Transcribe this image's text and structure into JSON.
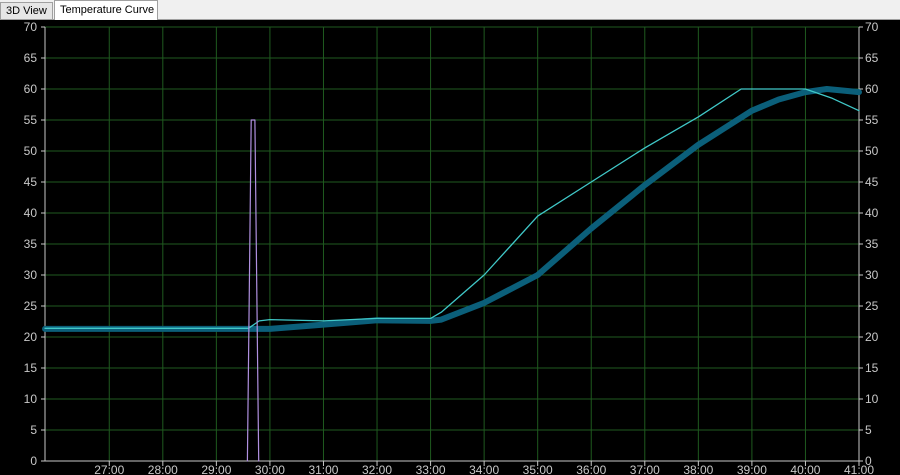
{
  "tabs": [
    {
      "label": "3D View",
      "active": false
    },
    {
      "label": "Temperature Curve",
      "active": true
    }
  ],
  "colors": {
    "background": "#000000",
    "grid": "#1f5a1f",
    "tick_text": "#c8c8c8",
    "series_thick": "#0b5f7a",
    "series_thin": "#40c8c8",
    "series_spike": "#b090e0"
  },
  "chart_data": {
    "type": "line",
    "x_axis_unit": "minutes",
    "xlim": [
      25.8,
      41.0
    ],
    "ylim": [
      0,
      70
    ],
    "grid": true,
    "x_tick_labels": [
      "27:00",
      "28:00",
      "29:00",
      "30:00",
      "31:00",
      "32:00",
      "33:00",
      "34:00",
      "35:00",
      "36:00",
      "37:00",
      "38:00",
      "39:00",
      "40:00",
      "41:00"
    ],
    "y_tick_labels": [
      "0",
      "5",
      "10",
      "15",
      "20",
      "25",
      "30",
      "35",
      "40",
      "45",
      "50",
      "55",
      "60",
      "65",
      "70"
    ],
    "series": [
      {
        "style": "thick",
        "points": [
          [
            25.8,
            21.3
          ],
          [
            29.6,
            21.3
          ],
          [
            30.0,
            21.3
          ],
          [
            31.0,
            22.0
          ],
          [
            32.0,
            22.7
          ],
          [
            33.0,
            22.6
          ],
          [
            33.2,
            22.8
          ],
          [
            34.0,
            25.5
          ],
          [
            35.0,
            30.0
          ],
          [
            36.0,
            37.5
          ],
          [
            37.0,
            44.5
          ],
          [
            38.0,
            51.0
          ],
          [
            39.0,
            56.5
          ],
          [
            39.5,
            58.3
          ],
          [
            40.0,
            59.5
          ],
          [
            40.4,
            60.0
          ],
          [
            41.0,
            59.5
          ]
        ]
      },
      {
        "style": "thin",
        "points": [
          [
            25.8,
            21.4
          ],
          [
            29.6,
            21.4
          ],
          [
            29.8,
            22.6
          ],
          [
            30.0,
            22.8
          ],
          [
            31.0,
            22.6
          ],
          [
            32.0,
            23.0
          ],
          [
            33.0,
            23.0
          ],
          [
            33.2,
            24.0
          ],
          [
            34.0,
            30.0
          ],
          [
            35.0,
            39.5
          ],
          [
            36.0,
            45.0
          ],
          [
            37.0,
            50.5
          ],
          [
            38.0,
            55.5
          ],
          [
            38.8,
            60.0
          ],
          [
            39.0,
            60.0
          ],
          [
            39.5,
            60.0
          ],
          [
            40.0,
            60.0
          ],
          [
            40.5,
            58.5
          ],
          [
            41.0,
            56.5
          ]
        ]
      },
      {
        "style": "spike",
        "points": [
          [
            29.58,
            0
          ],
          [
            29.65,
            55
          ],
          [
            29.72,
            55
          ],
          [
            29.79,
            0
          ]
        ]
      }
    ]
  }
}
